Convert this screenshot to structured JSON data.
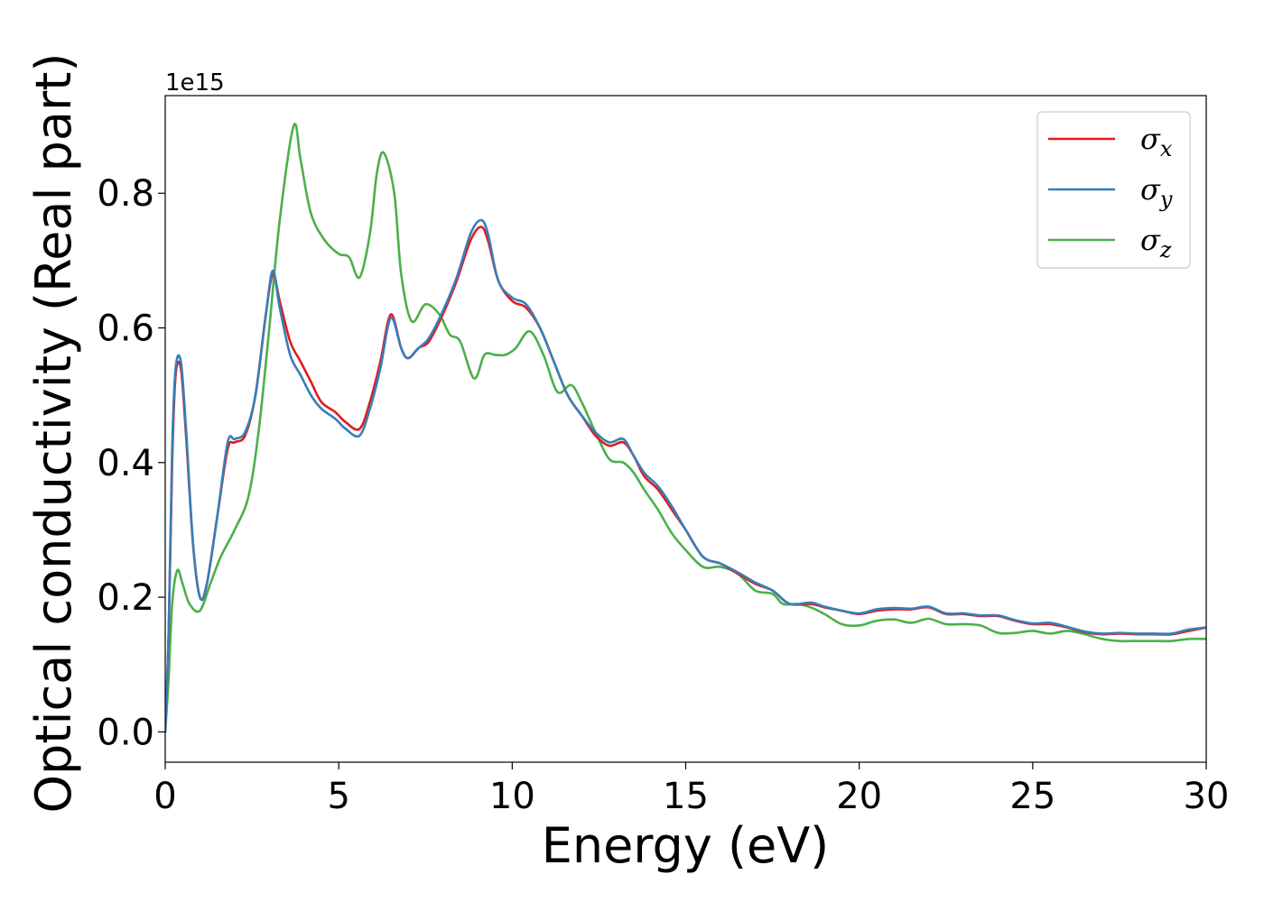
{
  "chart_data": {
    "type": "line",
    "xlabel": "Energy (eV)",
    "ylabel": "Optical conductivity (Real part)",
    "y_offset_label": "1e15",
    "xlim": [
      0,
      30
    ],
    "ylim": [
      -0.045,
      0.945
    ],
    "xticks": [
      0,
      5,
      10,
      15,
      20,
      25,
      30
    ],
    "xtick_labels": [
      "0",
      "5",
      "10",
      "15",
      "20",
      "25",
      "30"
    ],
    "yticks": [
      0.0,
      0.2,
      0.4,
      0.6,
      0.8
    ],
    "ytick_labels": [
      "0.0",
      "0.2",
      "0.4",
      "0.6",
      "0.8"
    ],
    "grid": false,
    "legend_position": "top-right",
    "series": [
      {
        "name": "σx",
        "base": "σ",
        "sub": "x",
        "color": "#e41a1c",
        "points": [
          [
            0,
            0
          ],
          [
            0.1,
            0.15
          ],
          [
            0.2,
            0.4
          ],
          [
            0.3,
            0.53
          ],
          [
            0.45,
            0.54
          ],
          [
            0.6,
            0.44
          ],
          [
            0.8,
            0.28
          ],
          [
            1.0,
            0.2
          ],
          [
            1.2,
            0.22
          ],
          [
            1.5,
            0.32
          ],
          [
            1.8,
            0.42
          ],
          [
            2.0,
            0.43
          ],
          [
            2.3,
            0.44
          ],
          [
            2.6,
            0.5
          ],
          [
            2.9,
            0.62
          ],
          [
            3.1,
            0.68
          ],
          [
            3.3,
            0.64
          ],
          [
            3.6,
            0.58
          ],
          [
            3.9,
            0.55
          ],
          [
            4.2,
            0.52
          ],
          [
            4.5,
            0.49
          ],
          [
            4.9,
            0.475
          ],
          [
            5.2,
            0.46
          ],
          [
            5.6,
            0.45
          ],
          [
            5.9,
            0.49
          ],
          [
            6.2,
            0.55
          ],
          [
            6.5,
            0.62
          ],
          [
            6.8,
            0.57
          ],
          [
            7.0,
            0.555
          ],
          [
            7.3,
            0.57
          ],
          [
            7.6,
            0.58
          ],
          [
            8.0,
            0.62
          ],
          [
            8.4,
            0.67
          ],
          [
            8.8,
            0.73
          ],
          [
            9.1,
            0.75
          ],
          [
            9.3,
            0.73
          ],
          [
            9.6,
            0.67
          ],
          [
            10.0,
            0.64
          ],
          [
            10.4,
            0.63
          ],
          [
            10.8,
            0.6
          ],
          [
            11.2,
            0.55
          ],
          [
            11.6,
            0.5
          ],
          [
            12.0,
            0.47
          ],
          [
            12.4,
            0.44
          ],
          [
            12.8,
            0.425
          ],
          [
            13.2,
            0.43
          ],
          [
            13.5,
            0.41
          ],
          [
            13.8,
            0.38
          ],
          [
            14.2,
            0.36
          ],
          [
            14.6,
            0.33
          ],
          [
            15.0,
            0.3
          ],
          [
            15.5,
            0.26
          ],
          [
            16.0,
            0.25
          ],
          [
            16.5,
            0.235
          ],
          [
            17.0,
            0.22
          ],
          [
            17.5,
            0.21
          ],
          [
            18.0,
            0.19
          ],
          [
            18.6,
            0.19
          ],
          [
            19.0,
            0.185
          ],
          [
            19.5,
            0.18
          ],
          [
            20.0,
            0.175
          ],
          [
            20.5,
            0.18
          ],
          [
            21.0,
            0.182
          ],
          [
            21.5,
            0.182
          ],
          [
            22.0,
            0.185
          ],
          [
            22.5,
            0.175
          ],
          [
            23.0,
            0.175
          ],
          [
            23.5,
            0.172
          ],
          [
            24.0,
            0.172
          ],
          [
            24.5,
            0.165
          ],
          [
            25.0,
            0.16
          ],
          [
            25.5,
            0.16
          ],
          [
            26.0,
            0.155
          ],
          [
            26.5,
            0.148
          ],
          [
            27.0,
            0.145
          ],
          [
            27.5,
            0.146
          ],
          [
            28.0,
            0.145
          ],
          [
            28.5,
            0.145
          ],
          [
            29.0,
            0.145
          ],
          [
            29.5,
            0.15
          ],
          [
            30.0,
            0.155
          ]
        ]
      },
      {
        "name": "σy",
        "base": "σ",
        "sub": "y",
        "color": "#377eb8",
        "points": [
          [
            0,
            0
          ],
          [
            0.1,
            0.15
          ],
          [
            0.2,
            0.42
          ],
          [
            0.3,
            0.54
          ],
          [
            0.45,
            0.55
          ],
          [
            0.6,
            0.45
          ],
          [
            0.8,
            0.28
          ],
          [
            1.0,
            0.2
          ],
          [
            1.2,
            0.22
          ],
          [
            1.5,
            0.32
          ],
          [
            1.8,
            0.43
          ],
          [
            2.0,
            0.435
          ],
          [
            2.3,
            0.445
          ],
          [
            2.6,
            0.5
          ],
          [
            2.9,
            0.62
          ],
          [
            3.1,
            0.685
          ],
          [
            3.3,
            0.63
          ],
          [
            3.6,
            0.56
          ],
          [
            3.9,
            0.53
          ],
          [
            4.2,
            0.5
          ],
          [
            4.5,
            0.48
          ],
          [
            4.9,
            0.465
          ],
          [
            5.2,
            0.45
          ],
          [
            5.6,
            0.44
          ],
          [
            5.9,
            0.48
          ],
          [
            6.2,
            0.54
          ],
          [
            6.5,
            0.615
          ],
          [
            6.8,
            0.57
          ],
          [
            7.0,
            0.555
          ],
          [
            7.3,
            0.57
          ],
          [
            7.6,
            0.585
          ],
          [
            8.0,
            0.625
          ],
          [
            8.4,
            0.675
          ],
          [
            8.8,
            0.74
          ],
          [
            9.1,
            0.76
          ],
          [
            9.3,
            0.74
          ],
          [
            9.6,
            0.67
          ],
          [
            10.0,
            0.645
          ],
          [
            10.4,
            0.635
          ],
          [
            10.8,
            0.6
          ],
          [
            11.2,
            0.55
          ],
          [
            11.6,
            0.5
          ],
          [
            12.0,
            0.47
          ],
          [
            12.4,
            0.445
          ],
          [
            12.8,
            0.43
          ],
          [
            13.2,
            0.435
          ],
          [
            13.5,
            0.41
          ],
          [
            13.8,
            0.385
          ],
          [
            14.2,
            0.365
          ],
          [
            14.6,
            0.335
          ],
          [
            15.0,
            0.3
          ],
          [
            15.5,
            0.26
          ],
          [
            16.0,
            0.25
          ],
          [
            16.5,
            0.237
          ],
          [
            17.0,
            0.222
          ],
          [
            17.5,
            0.21
          ],
          [
            18.0,
            0.19
          ],
          [
            18.6,
            0.192
          ],
          [
            19.0,
            0.186
          ],
          [
            19.5,
            0.18
          ],
          [
            20.0,
            0.176
          ],
          [
            20.5,
            0.182
          ],
          [
            21.0,
            0.184
          ],
          [
            21.5,
            0.183
          ],
          [
            22.0,
            0.186
          ],
          [
            22.5,
            0.176
          ],
          [
            23.0,
            0.176
          ],
          [
            23.5,
            0.173
          ],
          [
            24.0,
            0.173
          ],
          [
            24.5,
            0.166
          ],
          [
            25.0,
            0.161
          ],
          [
            25.5,
            0.162
          ],
          [
            26.0,
            0.156
          ],
          [
            26.5,
            0.149
          ],
          [
            27.0,
            0.146
          ],
          [
            27.5,
            0.147
          ],
          [
            28.0,
            0.146
          ],
          [
            28.5,
            0.146
          ],
          [
            29.0,
            0.146
          ],
          [
            29.5,
            0.152
          ],
          [
            30.0,
            0.155
          ]
        ]
      },
      {
        "name": "σz",
        "base": "σ",
        "sub": "z",
        "color": "#4daf4a",
        "points": [
          [
            0,
            0
          ],
          [
            0.1,
            0.08
          ],
          [
            0.2,
            0.19
          ],
          [
            0.35,
            0.24
          ],
          [
            0.5,
            0.22
          ],
          [
            0.7,
            0.19
          ],
          [
            1.0,
            0.18
          ],
          [
            1.3,
            0.22
          ],
          [
            1.6,
            0.26
          ],
          [
            2.0,
            0.3
          ],
          [
            2.4,
            0.35
          ],
          [
            2.7,
            0.45
          ],
          [
            3.0,
            0.6
          ],
          [
            3.3,
            0.76
          ],
          [
            3.7,
            0.9
          ],
          [
            3.9,
            0.85
          ],
          [
            4.2,
            0.77
          ],
          [
            4.6,
            0.73
          ],
          [
            5.0,
            0.71
          ],
          [
            5.3,
            0.705
          ],
          [
            5.6,
            0.675
          ],
          [
            5.9,
            0.74
          ],
          [
            6.1,
            0.83
          ],
          [
            6.3,
            0.86
          ],
          [
            6.6,
            0.8
          ],
          [
            6.8,
            0.68
          ],
          [
            7.1,
            0.61
          ],
          [
            7.5,
            0.635
          ],
          [
            7.9,
            0.62
          ],
          [
            8.2,
            0.59
          ],
          [
            8.5,
            0.58
          ],
          [
            8.9,
            0.525
          ],
          [
            9.2,
            0.56
          ],
          [
            9.5,
            0.56
          ],
          [
            9.8,
            0.56
          ],
          [
            10.1,
            0.57
          ],
          [
            10.5,
            0.595
          ],
          [
            10.9,
            0.56
          ],
          [
            11.3,
            0.505
          ],
          [
            11.7,
            0.515
          ],
          [
            12.0,
            0.49
          ],
          [
            12.4,
            0.445
          ],
          [
            12.8,
            0.405
          ],
          [
            13.2,
            0.4
          ],
          [
            13.5,
            0.385
          ],
          [
            13.8,
            0.36
          ],
          [
            14.2,
            0.33
          ],
          [
            14.6,
            0.295
          ],
          [
            15.0,
            0.27
          ],
          [
            15.5,
            0.245
          ],
          [
            16.0,
            0.245
          ],
          [
            16.5,
            0.235
          ],
          [
            17.0,
            0.21
          ],
          [
            17.5,
            0.205
          ],
          [
            17.8,
            0.19
          ],
          [
            18.2,
            0.19
          ],
          [
            18.6,
            0.185
          ],
          [
            19.0,
            0.175
          ],
          [
            19.5,
            0.16
          ],
          [
            20.0,
            0.158
          ],
          [
            20.5,
            0.165
          ],
          [
            21.0,
            0.167
          ],
          [
            21.5,
            0.162
          ],
          [
            22.0,
            0.168
          ],
          [
            22.5,
            0.16
          ],
          [
            23.0,
            0.16
          ],
          [
            23.5,
            0.158
          ],
          [
            24.0,
            0.147
          ],
          [
            24.5,
            0.147
          ],
          [
            25.0,
            0.15
          ],
          [
            25.5,
            0.146
          ],
          [
            26.0,
            0.15
          ],
          [
            26.5,
            0.145
          ],
          [
            27.0,
            0.138
          ],
          [
            27.5,
            0.135
          ],
          [
            28.0,
            0.135
          ],
          [
            28.5,
            0.135
          ],
          [
            29.0,
            0.135
          ],
          [
            29.5,
            0.138
          ],
          [
            30.0,
            0.138
          ]
        ]
      }
    ]
  }
}
